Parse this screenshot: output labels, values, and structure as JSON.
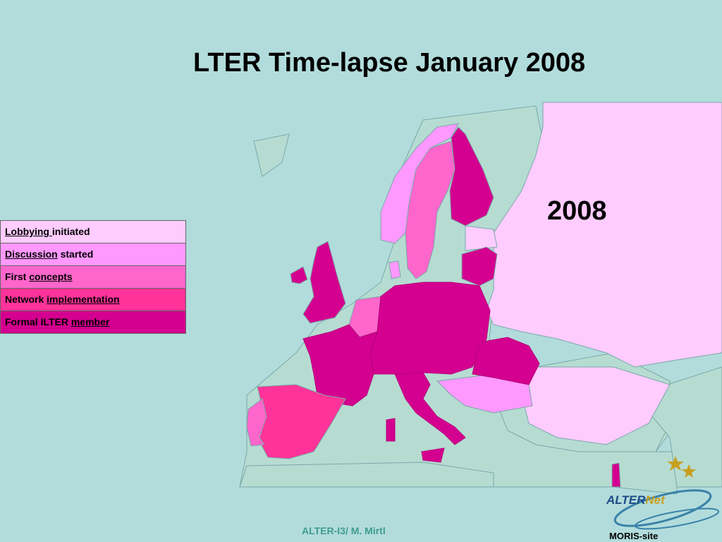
{
  "title": "LTER Time-lapse January 2008",
  "year_label": "2008",
  "legend": [
    {
      "pre": "",
      "link": "Lobbying ",
      "post": "initiated",
      "color": "#ffccff"
    },
    {
      "pre": "",
      "link": "Discussion",
      "post": " started",
      "color": "#ff99ff"
    },
    {
      "pre": "First ",
      "link": "concepts",
      "post": "",
      "color": "#ff66cc"
    },
    {
      "pre": "Network ",
      "link": "implementation",
      "post": "",
      "color": "#ff3399"
    },
    {
      "pre": "Formal ILTER ",
      "link": "member",
      "post": "",
      "color": "#d4008f"
    }
  ],
  "footer": "ALTER-I3/ M. Mirtl",
  "logo": {
    "part1": "ALTER",
    "part2": "Net"
  },
  "moris": "MORIS-site",
  "colors": {
    "sea": "#b2dcdc",
    "land_none": "#b6dcd2",
    "lobbying": "#ffccff",
    "discussion": "#ff99ff",
    "concepts": "#ff66cc",
    "implementation": "#ff3399",
    "member": "#d4008f"
  }
}
